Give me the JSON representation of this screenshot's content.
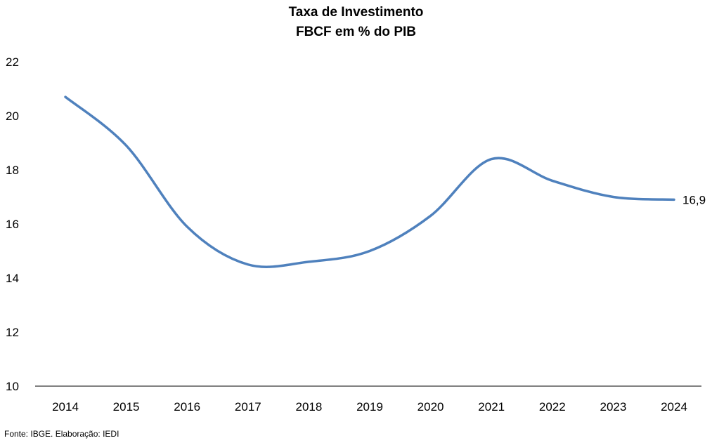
{
  "chart_data": {
    "type": "line",
    "title": [
      "Taxa de Investimento",
      "FBCF em % do PIB"
    ],
    "x": [
      "2014",
      "2015",
      "2016",
      "2017",
      "2018",
      "2019",
      "2020",
      "2021",
      "2022",
      "2023",
      "2024"
    ],
    "series": [
      {
        "values": [
          20.7,
          18.9,
          15.9,
          14.5,
          14.6,
          15.0,
          16.3,
          18.4,
          17.6,
          17.0,
          16.9
        ],
        "color": "#4f81bd"
      }
    ],
    "ylim": [
      10,
      22
    ],
    "yticks": [
      "10",
      "12",
      "14",
      "16",
      "18",
      "20",
      "22"
    ],
    "data_label": {
      "index": 10,
      "text": "16,9"
    },
    "grid": false,
    "legend": "none"
  },
  "footer": {
    "source": "Fonte: IBGE. Elaboração: IEDI"
  }
}
